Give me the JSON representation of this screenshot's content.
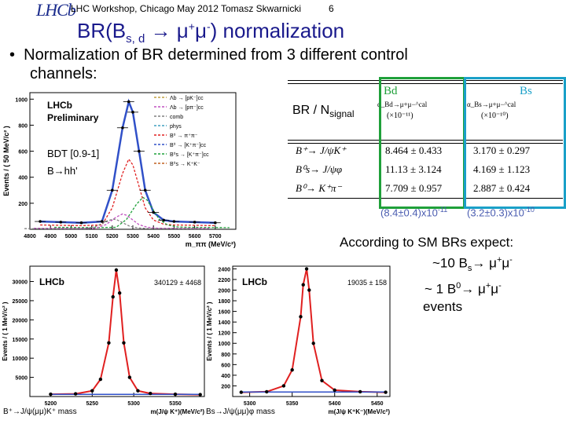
{
  "header": {
    "logo": "LHCb",
    "workshop": "LHC Workshop, Chicago May 2012 Tomasz Skwarnicki",
    "page_number": "6"
  },
  "title": {
    "prefix": "BR(B",
    "sub": "s, d",
    "arrow": "→",
    "mu": "μ",
    "plus": "+",
    "minus": "-",
    "suffix": ") normalization"
  },
  "bullet": {
    "line1": "Normalization of BR determined from 3 different control",
    "line2": "channels:"
  },
  "table": {
    "row_label": "BR / N",
    "row_label_sub": "signal",
    "bd_label": "Bd",
    "bs_label": "Bs",
    "bd_alpha": "α_Bd→μ+μ−^cal",
    "bd_unit": "(×10⁻¹¹)",
    "bs_alpha": "α_Bs→μ+μ−^cal",
    "bs_unit": "(×10⁻¹⁰)",
    "rows": [
      {
        "channel": "B⁺→ J/ψK⁺",
        "bd": "8.464 ± 0.433",
        "bs": "3.170 ± 0.297"
      },
      {
        "channel": "B⁰s→ J/ψφ",
        "bd": "11.13 ± 3.124",
        "bs": "4.169 ± 1.123"
      },
      {
        "channel": "B⁰→ K⁺π⁻",
        "bd": "7.709 ± 0.957",
        "bs": "2.887 ± 0.424"
      }
    ],
    "avg_bd": "(8.4±0.4)x10",
    "avg_bd_exp": "-11",
    "avg_bs": "(3.2±0.3)x10",
    "avg_bs_exp": "-10"
  },
  "expect": {
    "line1": "According to SM BRs expect:",
    "line2_a": "~10 B",
    "line2_sub": "s",
    "line2_b": "→ μ",
    "line2_c": "+",
    "line2_d": "μ",
    "line2_e": "-",
    "line3_a": "~ 1 B",
    "line3_sup": "0",
    "line3_b": "→ μ",
    "line3_c": "+",
    "line3_d": "μ",
    "line3_e": "-",
    "line4": "events"
  },
  "colors": {
    "title": "#1a1a8c",
    "bd_box": "#1fa03a",
    "bs_box": "#1aa0c8",
    "average": "#4a5cb0",
    "fit_blue": "#3050c8",
    "red": "#e02020"
  },
  "chart_data": [
    {
      "type": "line",
      "title": "LHCb Preliminary",
      "xlabel": "m_ππ (MeV/c²)",
      "ylabel": "Events / ( 50 MeV/c² )",
      "xlim": [
        4800,
        5800
      ],
      "ylim": [
        0,
        1050
      ],
      "xticks": [
        "4800",
        "4900",
        "5000",
        "5100",
        "5200",
        "5300",
        "5400",
        "5500",
        "5600",
        "5700"
      ],
      "yticks": [
        "200",
        "400",
        "600",
        "800",
        "1000"
      ],
      "selection": "BDT [0.9-1]",
      "mode": "B→hh'",
      "legend": [
        "Λb → [pK⁻]cc",
        "Λb → [pπ⁻]cc",
        "comb",
        "phys",
        "B⁰ → π⁺π⁻",
        "B⁰ → [K⁺π⁻]cc",
        "B⁰s → [K⁺π⁻]cc",
        "B⁰s → K⁺K⁻"
      ],
      "x": [
        4850,
        4950,
        5050,
        5150,
        5200,
        5250,
        5280,
        5300,
        5330,
        5360,
        5400,
        5450,
        5500,
        5600,
        5700
      ],
      "y": [
        60,
        55,
        50,
        60,
        300,
        780,
        980,
        900,
        600,
        300,
        130,
        70,
        60,
        55,
        50
      ]
    },
    {
      "type": "scatter",
      "title": "LHCb",
      "yield": "340129 ± 4468",
      "xlabel": "m(J/ψ K⁺)(MeV/c²)",
      "caption": "B⁺→J/ψ(μμ)K⁺ mass",
      "ylabel": "Events / ( 1 MeV/c² )",
      "xticks": [
        "5200",
        "5250",
        "5300",
        "5350"
      ],
      "yticks": [
        "5000",
        "10000",
        "15000",
        "20000",
        "25000",
        "30000"
      ],
      "xlim": [
        5175,
        5385
      ],
      "ylim": [
        0,
        34000
      ],
      "x": [
        5200,
        5230,
        5250,
        5260,
        5270,
        5275,
        5279,
        5283,
        5288,
        5295,
        5305,
        5320,
        5350,
        5380
      ],
      "y": [
        600,
        700,
        1500,
        4500,
        14000,
        26000,
        33000,
        27000,
        14000,
        5000,
        1500,
        800,
        600,
        500
      ]
    },
    {
      "type": "scatter",
      "title": "LHCb",
      "yield": "19035 ± 158",
      "xlabel": "m(J/ψ K⁺K⁻)(MeV/c²)",
      "caption": "Bs→J/ψ(μμ)φ mass",
      "ylabel": "Events / ( 1 MeV/c² )",
      "xticks": [
        "5300",
        "5350",
        "5400",
        "5450"
      ],
      "yticks": [
        "200",
        "400",
        "600",
        "800",
        "1000",
        "1200",
        "1400",
        "1600",
        "1800",
        "2000",
        "2200",
        "2400"
      ],
      "xlim": [
        5280,
        5465
      ],
      "ylim": [
        0,
        2450
      ],
      "x": [
        5290,
        5320,
        5340,
        5350,
        5360,
        5363,
        5367,
        5370,
        5375,
        5385,
        5400,
        5430,
        5460
      ],
      "y": [
        80,
        90,
        200,
        500,
        1500,
        2100,
        2400,
        2000,
        1000,
        300,
        120,
        90,
        80
      ]
    }
  ]
}
